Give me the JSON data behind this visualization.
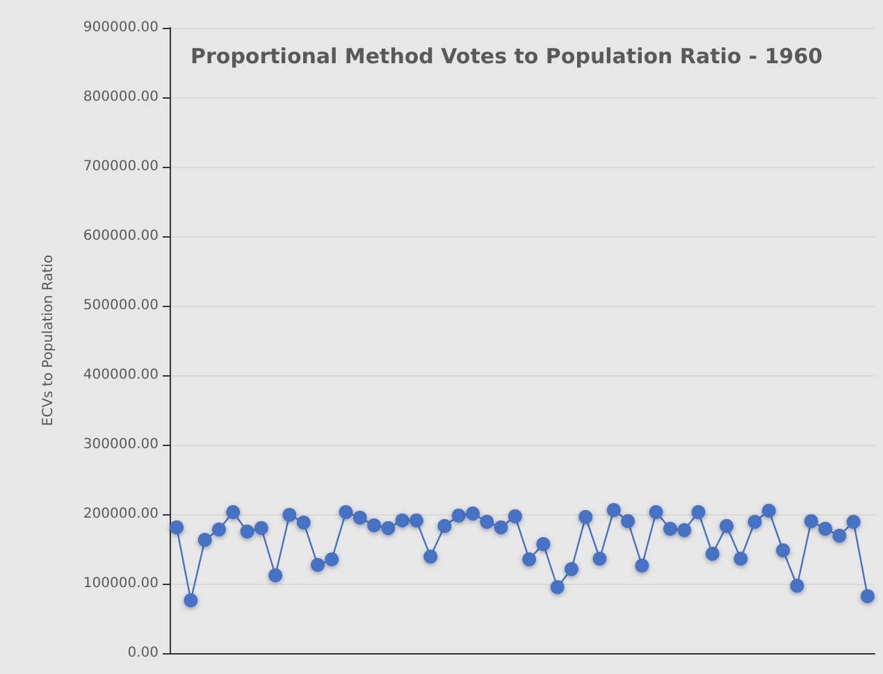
{
  "chart_data": {
    "type": "line",
    "title": "Proportional Method Votes to Population Ratio - 1960",
    "ylabel": "ECVs to Population Ratio",
    "categories": [
      null,
      null,
      null,
      null,
      null,
      null,
      null,
      null,
      null,
      null,
      null,
      null,
      null,
      null,
      null,
      null,
      null,
      null,
      null,
      null,
      null,
      null,
      null,
      null,
      null,
      null,
      null,
      null,
      null,
      null,
      null,
      null,
      null,
      null,
      null,
      null,
      null,
      null,
      null,
      null,
      null,
      null,
      null,
      null,
      null,
      null,
      null,
      null,
      null,
      null
    ],
    "series": [
      {
        "color": "#4472c4",
        "values": [
          181000,
          76000,
          163000,
          178000,
          203000,
          175000,
          180000,
          112000,
          199000,
          188000,
          127000,
          135000,
          203000,
          195000,
          184000,
          180000,
          191000,
          191000,
          139000,
          183000,
          198000,
          201000,
          189000,
          181000,
          197000,
          135000,
          157000,
          95000,
          121000,
          196000,
          136000,
          206000,
          190000,
          126000,
          203000,
          179000,
          177000,
          203000,
          143000,
          183000,
          136000,
          189000,
          205000,
          148000,
          97000,
          190000,
          179000,
          169000,
          189000,
          82000
        ]
      }
    ],
    "ylim": [
      0,
      900000
    ],
    "yticks": [
      {
        "value": 0,
        "label": "0.00"
      },
      {
        "value": 100000,
        "label": "100000.00"
      },
      {
        "value": 200000,
        "label": "200000.00"
      },
      {
        "value": 300000,
        "label": "300000.00"
      },
      {
        "value": 400000,
        "label": "400000.00"
      },
      {
        "value": 500000,
        "label": "500000.00"
      },
      {
        "value": 600000,
        "label": "600000.00"
      },
      {
        "value": 700000,
        "label": "700000.00"
      },
      {
        "value": 800000,
        "label": "800000.00"
      },
      {
        "value": 900000,
        "label": "900000.00"
      }
    ],
    "grid": "y",
    "marker": "circle",
    "line_style": "solid",
    "tick_labels": "y"
  }
}
